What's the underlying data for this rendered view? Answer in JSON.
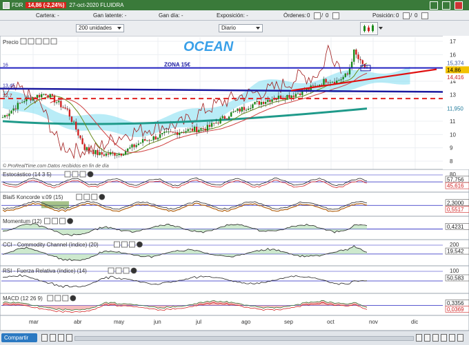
{
  "titlebar": {
    "symbol": "FDR",
    "change": "14,86 (-2,24%)",
    "date_name": "27-oct-2020 FLUIDRA"
  },
  "infobar": {
    "cartera": "Cartera: -",
    "ganancia_latente": "Gan latente: -",
    "ganancia_dia": "Gan día: -",
    "exposicion": "Exposición: -",
    "ordenes": "Órdenes:",
    "ordenes_a": "0",
    "ordenes_b": "0",
    "posicion": "Posición:",
    "posicion_a": "0",
    "posicion_b": "0"
  },
  "toolbar": {
    "units": "200 unidades",
    "period": "Diario"
  },
  "price_panel": {
    "label": "Precio",
    "title": "OCEAN",
    "zona": "ZONA 15€",
    "watermark": "© ProRealTime.com Datos recibidos en fin de día",
    "left_tag_16": "16",
    "left_tag_1345": "13,45",
    "left_tag_127": "12,7",
    "axis": [
      "17",
      "16",
      "15",
      "14",
      "13",
      "12",
      "11",
      "10",
      "9",
      "8"
    ],
    "price_tags": {
      "top": "15,374",
      "current": "14,86",
      "red": "14,416",
      "low": "11,950"
    }
  },
  "indicators": [
    {
      "label": "Estocástico (14 3 5)",
      "values": [
        "57,756",
        "45,616"
      ],
      "levels": [
        "80"
      ]
    },
    {
      "label": "Blai5 Koncorde v.09 (15)",
      "values": [
        "2,3000",
        "0,5517"
      ],
      "levels": []
    },
    {
      "label": "Momentum (12)",
      "values": [
        "0,4231"
      ],
      "levels": []
    },
    {
      "label": "CCI - Commodity Channel (índice) (20)",
      "values": [
        "19,542"
      ],
      "levels": [
        "200"
      ]
    },
    {
      "label": "RSI - Fuerza Relativa (índice) (14)",
      "values": [
        "50,583"
      ],
      "levels": [
        "100"
      ]
    },
    {
      "label": "MACD (12 26 9)",
      "values": [
        "0,3356",
        "0,0369"
      ],
      "levels": []
    }
  ],
  "months": [
    "mar",
    "abr",
    "may",
    "jun",
    "jul",
    "ago",
    "sep",
    "oct",
    "nov",
    "dic"
  ],
  "bottombar": {
    "share": "Compartir"
  },
  "colors": {
    "up": "#1a8a1a",
    "down": "#d02020",
    "cloud": "#7fdcf0",
    "cloud_dark": "#2e9a4a",
    "zone": "#2020c0"
  }
}
